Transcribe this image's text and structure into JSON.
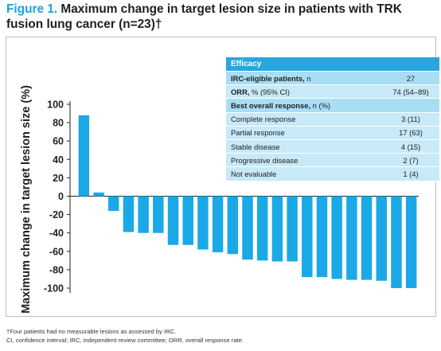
{
  "title": {
    "figure_label": "Figure 1.",
    "text": "Maximum change in target lesion size in patients with TRK fusion lung cancer (n=23)†"
  },
  "efficacy_table": {
    "header": "Efficacy",
    "rows": [
      {
        "label_bold": "IRC-eligible patients,",
        "label_rest": " n",
        "value": "27",
        "shade": "dark"
      },
      {
        "label_bold": "ORR,",
        "label_rest": " % (95% CI)",
        "value": "74 (54–89)",
        "shade": "light"
      },
      {
        "label_bold": "Best overall response,",
        "label_rest": " n (%)",
        "value": "",
        "shade": "dark"
      },
      {
        "label_bold": "",
        "label_rest": "Complete response",
        "value": "3 (11)",
        "shade": "light"
      },
      {
        "label_bold": "",
        "label_rest": "Partial response",
        "value": "17 (63)",
        "shade": "light"
      },
      {
        "label_bold": "",
        "label_rest": "Stable disease",
        "value": "4 (15)",
        "shade": "light"
      },
      {
        "label_bold": "",
        "label_rest": "Progressive disease",
        "value": "2 (7)",
        "shade": "light"
      },
      {
        "label_bold": "",
        "label_rest": "Not evaluable",
        "value": "1 (4)",
        "shade": "light"
      }
    ]
  },
  "chart_data": {
    "type": "bar",
    "title": "Maximum change in target lesion size in patients with TRK fusion lung cancer (n=23)†",
    "ylabel": "Maximum change in target lesion size (%)",
    "xlabel": "",
    "ylim": [
      -100,
      100
    ],
    "yticks": [
      100,
      80,
      60,
      40,
      20,
      0,
      -20,
      -40,
      -60,
      -80,
      -100
    ],
    "bar_color": "#1aa9e6",
    "values": [
      88,
      4,
      -16,
      -39,
      -40,
      -40,
      -53,
      -53,
      -58,
      -61,
      -63,
      -69,
      -70,
      -71,
      -71,
      -88,
      -88,
      -90,
      -91,
      -91,
      -92,
      -100,
      -100
    ]
  },
  "footnotes": [
    "†Four patients had no measurable lesions as assessed by IRC.",
    "CI, confidence interval; IRC, independent review committee; ORR, overall response rate."
  ]
}
